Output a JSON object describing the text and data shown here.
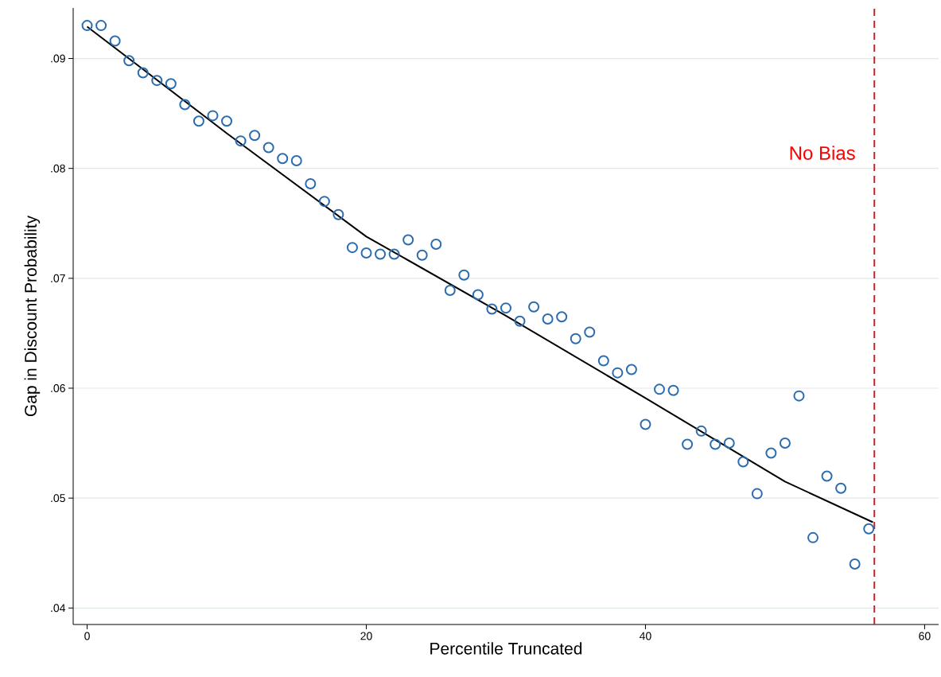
{
  "chart_data": {
    "type": "scatter",
    "xlabel": "Percentile Truncated",
    "ylabel": "Gap in Discount Probability",
    "xlim": [
      -1,
      61
    ],
    "ylim": [
      0.0385,
      0.0946
    ],
    "xticks": [
      0,
      20,
      40,
      60
    ],
    "yticks": [
      {
        "value": 0.04,
        "label": ".04"
      },
      {
        "value": 0.05,
        "label": ".05"
      },
      {
        "value": 0.06,
        "label": ".06"
      },
      {
        "value": 0.07,
        "label": ".07"
      },
      {
        "value": 0.08,
        "label": ".08"
      },
      {
        "value": 0.09,
        "label": ".09"
      }
    ],
    "grid": "y",
    "series": [
      {
        "marker": "circle",
        "color": "#2b6cb0",
        "x": [
          0,
          1,
          2,
          3,
          4,
          5,
          6,
          7,
          8,
          9,
          10,
          11,
          12,
          13,
          14,
          15,
          16,
          17,
          18,
          19,
          20,
          21,
          22,
          23,
          24,
          25,
          26,
          27,
          28,
          29,
          30,
          31,
          32,
          33,
          34,
          35,
          36,
          37,
          38,
          39,
          40,
          41,
          42,
          43,
          44,
          45,
          46,
          47,
          48,
          49,
          50,
          51,
          52,
          53,
          54,
          55,
          56
        ],
        "values": [
          0.093,
          0.093,
          0.0916,
          0.0898,
          0.0887,
          0.088,
          0.0877,
          0.0858,
          0.0843,
          0.0848,
          0.0843,
          0.0825,
          0.083,
          0.0819,
          0.0809,
          0.0807,
          0.0786,
          0.077,
          0.0758,
          0.0728,
          0.0723,
          0.0722,
          0.0722,
          0.0735,
          0.0721,
          0.0731,
          0.0689,
          0.0703,
          0.0685,
          0.0672,
          0.0673,
          0.0661,
          0.0674,
          0.0663,
          0.0665,
          0.0645,
          0.0651,
          0.0625,
          0.0614,
          0.0617,
          0.0567,
          0.0599,
          0.0598,
          0.0549,
          0.0561,
          0.0549,
          0.055,
          0.0533,
          0.0504,
          0.0541,
          0.055,
          0.0593,
          0.0464,
          0.052,
          0.0509,
          0.044,
          0.0472
        ]
      },
      {
        "type": "line",
        "marker": "none",
        "color": "#000000",
        "x": [
          0,
          10,
          20,
          30,
          40,
          50,
          56.3
        ],
        "values": [
          0.0929,
          0.0832,
          0.0738,
          0.0666,
          0.0591,
          0.0515,
          0.0478
        ]
      }
    ],
    "ref_lines": [
      {
        "axis": "x",
        "value": 56.4,
        "label": "No Bias",
        "color": "#c0262d",
        "line_style": "dashed"
      }
    ]
  }
}
